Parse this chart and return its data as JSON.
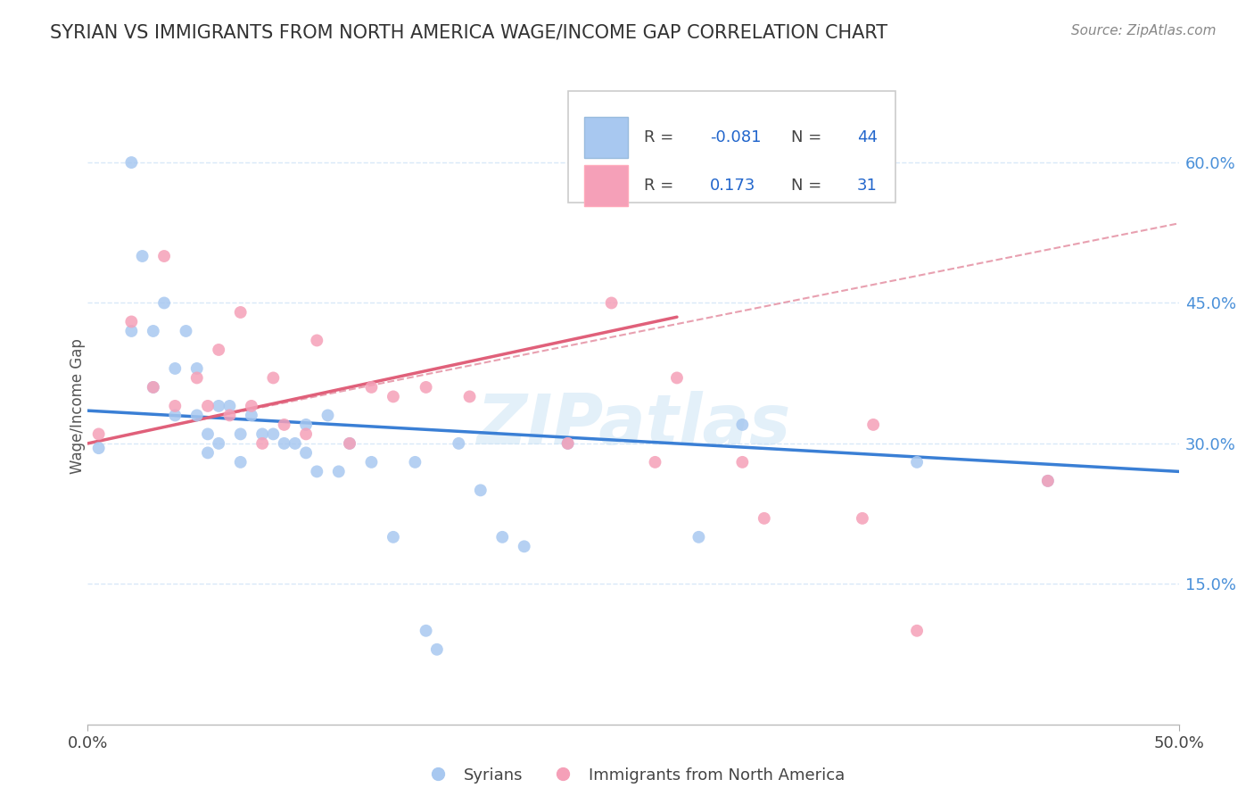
{
  "title": "SYRIAN VS IMMIGRANTS FROM NORTH AMERICA WAGE/INCOME GAP CORRELATION CHART",
  "source": "Source: ZipAtlas.com",
  "ylabel": "Wage/Income Gap",
  "ytick_values": [
    0.15,
    0.3,
    0.45,
    0.6
  ],
  "ytick_labels": [
    "15.0%",
    "30.0%",
    "45.0%",
    "60.0%"
  ],
  "xrange": [
    0.0,
    0.5
  ],
  "yrange": [
    0.0,
    0.68
  ],
  "legend_label1": "Syrians",
  "legend_label2": "Immigrants from North America",
  "R1": "-0.081",
  "N1": "44",
  "R2": "0.173",
  "N2": "31",
  "dot_color1": "#a8c8f0",
  "dot_color2": "#f5a0b8",
  "line_color1": "#3a7fd5",
  "line_color2": "#e0607a",
  "dashed_color": "#e8a0b0",
  "grid_color": "#d8e8f8",
  "syrians_x": [
    0.005,
    0.02,
    0.02,
    0.025,
    0.03,
    0.03,
    0.035,
    0.04,
    0.04,
    0.045,
    0.05,
    0.05,
    0.055,
    0.055,
    0.06,
    0.06,
    0.065,
    0.07,
    0.07,
    0.075,
    0.08,
    0.085,
    0.09,
    0.095,
    0.1,
    0.1,
    0.105,
    0.11,
    0.115,
    0.12,
    0.13,
    0.14,
    0.15,
    0.155,
    0.16,
    0.17,
    0.18,
    0.19,
    0.2,
    0.22,
    0.28,
    0.3,
    0.38,
    0.44
  ],
  "syrians_y": [
    0.295,
    0.6,
    0.42,
    0.5,
    0.42,
    0.36,
    0.45,
    0.38,
    0.33,
    0.42,
    0.38,
    0.33,
    0.31,
    0.29,
    0.34,
    0.3,
    0.34,
    0.31,
    0.28,
    0.33,
    0.31,
    0.31,
    0.3,
    0.3,
    0.32,
    0.29,
    0.27,
    0.33,
    0.27,
    0.3,
    0.28,
    0.2,
    0.28,
    0.1,
    0.08,
    0.3,
    0.25,
    0.2,
    0.19,
    0.3,
    0.2,
    0.32,
    0.28,
    0.26
  ],
  "north_am_x": [
    0.005,
    0.02,
    0.03,
    0.035,
    0.04,
    0.05,
    0.055,
    0.06,
    0.065,
    0.07,
    0.075,
    0.08,
    0.085,
    0.09,
    0.1,
    0.105,
    0.12,
    0.13,
    0.14,
    0.155,
    0.175,
    0.22,
    0.24,
    0.26,
    0.27,
    0.3,
    0.31,
    0.355,
    0.36,
    0.38,
    0.44
  ],
  "north_am_y": [
    0.31,
    0.43,
    0.36,
    0.5,
    0.34,
    0.37,
    0.34,
    0.4,
    0.33,
    0.44,
    0.34,
    0.3,
    0.37,
    0.32,
    0.31,
    0.41,
    0.3,
    0.36,
    0.35,
    0.36,
    0.35,
    0.3,
    0.45,
    0.28,
    0.37,
    0.28,
    0.22,
    0.22,
    0.32,
    0.1,
    0.26
  ],
  "blue_line_x0": 0.0,
  "blue_line_y0": 0.335,
  "blue_line_x1": 0.5,
  "blue_line_y1": 0.27,
  "pink_line_x0": 0.0,
  "pink_line_y0": 0.3,
  "pink_line_x1": 0.27,
  "pink_line_y1": 0.435,
  "diag_line_x0": 0.04,
  "diag_line_y0": 0.32,
  "diag_line_x1": 0.5,
  "diag_line_y1": 0.535
}
